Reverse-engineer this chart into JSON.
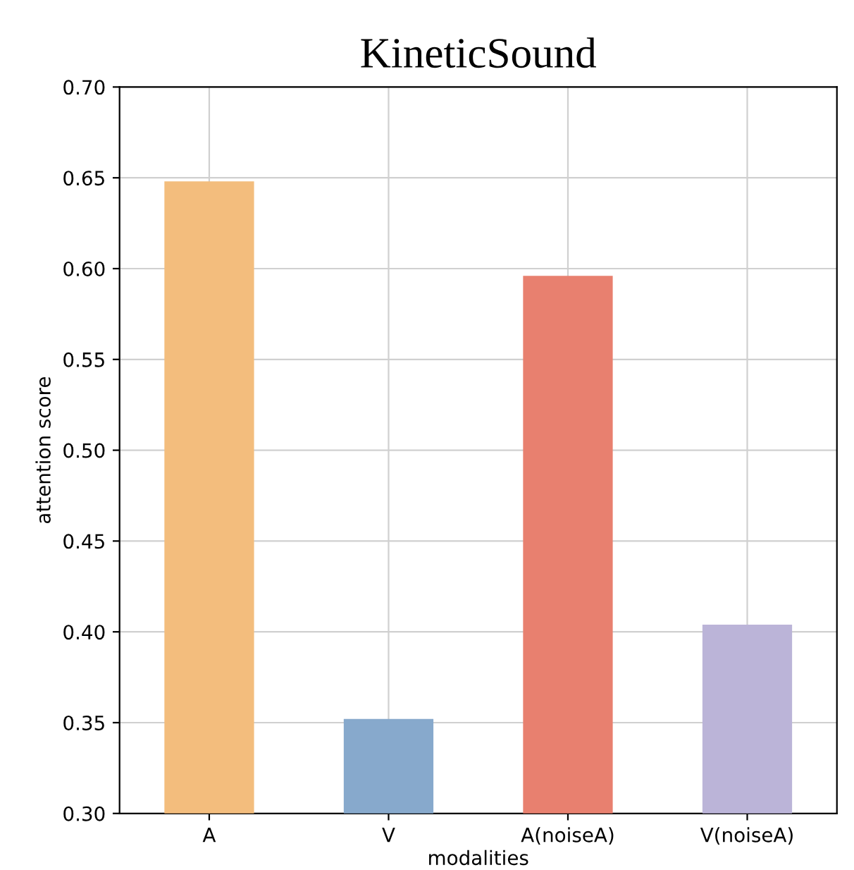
{
  "chart_data": {
    "type": "bar",
    "title": "KineticSound",
    "xlabel": "modalities",
    "ylabel": "attention score",
    "categories": [
      "A",
      "V",
      "A(noiseA)",
      "V(noiseA)"
    ],
    "values": [
      0.648,
      0.352,
      0.596,
      0.404
    ],
    "colors": [
      "#f3bd7d",
      "#87a9cc",
      "#e8806f",
      "#bbb4d8"
    ],
    "ylim": [
      0.3,
      0.7
    ],
    "yticks": [
      {
        "value": 0.3,
        "label": "0.30"
      },
      {
        "value": 0.35,
        "label": "0.35"
      },
      {
        "value": 0.4,
        "label": "0.40"
      },
      {
        "value": 0.45,
        "label": "0.45"
      },
      {
        "value": 0.5,
        "label": "0.50"
      },
      {
        "value": 0.55,
        "label": "0.55"
      },
      {
        "value": 0.6,
        "label": "0.60"
      },
      {
        "value": 0.65,
        "label": "0.65"
      },
      {
        "value": 0.7,
        "label": "0.70"
      }
    ],
    "grid": true
  }
}
